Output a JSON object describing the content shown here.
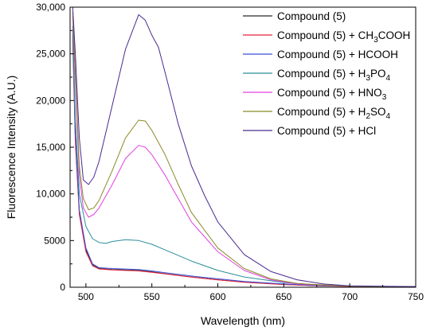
{
  "chart_data": {
    "type": "line",
    "xlabel": "Wavelength (nm)",
    "ylabel": "Fluorescence Intensity (A.U.)",
    "xlim": [
      488,
      750
    ],
    "ylim": [
      0,
      30000
    ],
    "xticks": [
      500,
      550,
      600,
      650,
      700,
      750
    ],
    "xtick_labels": [
      "500",
      "550",
      "600",
      "650",
      "700",
      "750"
    ],
    "yticks": [
      0,
      5000,
      10000,
      15000,
      20000,
      25000,
      30000
    ],
    "ytick_labels": [
      "0",
      "5000",
      "10,000",
      "15,000",
      "20,000",
      "25,000",
      "30,000"
    ],
    "grid": false,
    "legend_position": "top-right",
    "series": [
      {
        "legend": [
          {
            "t": "Compound (5)"
          }
        ],
        "color": "#2b2b2b",
        "points": [
          [
            490,
            27000
          ],
          [
            492,
            16000
          ],
          [
            495,
            8000
          ],
          [
            500,
            4000
          ],
          [
            505,
            2400
          ],
          [
            510,
            2000
          ],
          [
            520,
            1900
          ],
          [
            530,
            1850
          ],
          [
            540,
            1800
          ],
          [
            550,
            1650
          ],
          [
            560,
            1450
          ],
          [
            580,
            1100
          ],
          [
            600,
            800
          ],
          [
            620,
            550
          ],
          [
            650,
            300
          ],
          [
            680,
            150
          ],
          [
            710,
            80
          ],
          [
            750,
            50
          ]
        ]
      },
      {
        "legend": [
          {
            "t": "Compound (5) + CH"
          },
          {
            "t": "3",
            "sub": true
          },
          {
            "t": "COOH"
          }
        ],
        "color": "#e8213a",
        "points": [
          [
            490,
            26500
          ],
          [
            492,
            15500
          ],
          [
            495,
            7800
          ],
          [
            500,
            3800
          ],
          [
            505,
            2300
          ],
          [
            510,
            1950
          ],
          [
            520,
            1850
          ],
          [
            530,
            1800
          ],
          [
            540,
            1750
          ],
          [
            550,
            1600
          ],
          [
            560,
            1420
          ],
          [
            580,
            1080
          ],
          [
            600,
            780
          ],
          [
            620,
            540
          ],
          [
            650,
            290
          ],
          [
            680,
            140
          ],
          [
            710,
            70
          ],
          [
            750,
            40
          ]
        ]
      },
      {
        "legend": [
          {
            "t": "Compound (5) + HCOOH"
          }
        ],
        "color": "#3a4fd8",
        "points": [
          [
            490,
            27500
          ],
          [
            492,
            16500
          ],
          [
            495,
            8300
          ],
          [
            500,
            4200
          ],
          [
            505,
            2500
          ],
          [
            510,
            2100
          ],
          [
            520,
            2000
          ],
          [
            530,
            1950
          ],
          [
            540,
            1900
          ],
          [
            550,
            1750
          ],
          [
            560,
            1550
          ],
          [
            580,
            1200
          ],
          [
            600,
            900
          ],
          [
            620,
            620
          ],
          [
            650,
            350
          ],
          [
            680,
            170
          ],
          [
            710,
            90
          ],
          [
            750,
            50
          ]
        ]
      },
      {
        "legend": [
          {
            "t": "Compound (5) + H"
          },
          {
            "t": "3",
            "sub": true
          },
          {
            "t": "PO"
          },
          {
            "t": "4",
            "sub": true
          }
        ],
        "color": "#2a8f9a",
        "points": [
          [
            490,
            28000
          ],
          [
            492,
            18000
          ],
          [
            495,
            10000
          ],
          [
            500,
            6500
          ],
          [
            505,
            5200
          ],
          [
            510,
            4800
          ],
          [
            515,
            4700
          ],
          [
            520,
            4900
          ],
          [
            530,
            5100
          ],
          [
            540,
            5000
          ],
          [
            550,
            4600
          ],
          [
            560,
            4000
          ],
          [
            580,
            2800
          ],
          [
            600,
            1800
          ],
          [
            620,
            1100
          ],
          [
            650,
            500
          ],
          [
            680,
            200
          ],
          [
            710,
            90
          ],
          [
            750,
            40
          ]
        ]
      },
      {
        "legend": [
          {
            "t": "Compound (5) + HNO"
          },
          {
            "t": "3",
            "sub": true
          }
        ],
        "color": "#e040e0",
        "points": [
          [
            490,
            29000
          ],
          [
            492,
            22000
          ],
          [
            495,
            12000
          ],
          [
            498,
            8500
          ],
          [
            502,
            7500
          ],
          [
            506,
            7800
          ],
          [
            510,
            8500
          ],
          [
            520,
            11000
          ],
          [
            530,
            13800
          ],
          [
            540,
            15200
          ],
          [
            545,
            15000
          ],
          [
            550,
            14200
          ],
          [
            560,
            12000
          ],
          [
            570,
            9500
          ],
          [
            580,
            7000
          ],
          [
            600,
            3800
          ],
          [
            620,
            1800
          ],
          [
            640,
            800
          ],
          [
            660,
            350
          ],
          [
            700,
            100
          ],
          [
            750,
            40
          ]
        ]
      },
      {
        "legend": [
          {
            "t": "Compound (5) + H"
          },
          {
            "t": "2",
            "sub": true
          },
          {
            "t": "SO"
          },
          {
            "t": "4",
            "sub": true
          }
        ],
        "color": "#8a8a28",
        "points": [
          [
            490,
            29500
          ],
          [
            492,
            23000
          ],
          [
            495,
            13000
          ],
          [
            498,
            9500
          ],
          [
            502,
            8300
          ],
          [
            506,
            8500
          ],
          [
            510,
            9300
          ],
          [
            520,
            12500
          ],
          [
            530,
            16000
          ],
          [
            540,
            17900
          ],
          [
            545,
            17800
          ],
          [
            550,
            16800
          ],
          [
            560,
            14200
          ],
          [
            570,
            11000
          ],
          [
            580,
            8000
          ],
          [
            600,
            4200
          ],
          [
            620,
            2000
          ],
          [
            640,
            900
          ],
          [
            660,
            400
          ],
          [
            700,
            100
          ],
          [
            750,
            40
          ]
        ]
      },
      {
        "legend": [
          {
            "t": "Compound (5) + HCl"
          }
        ],
        "color": "#4a2a90",
        "points": [
          [
            490,
            30000
          ],
          [
            492,
            25000
          ],
          [
            495,
            16000
          ],
          [
            498,
            11500
          ],
          [
            502,
            11000
          ],
          [
            506,
            11800
          ],
          [
            510,
            13500
          ],
          [
            520,
            19500
          ],
          [
            530,
            25500
          ],
          [
            540,
            29200
          ],
          [
            545,
            28600
          ],
          [
            550,
            27000
          ],
          [
            555,
            25700
          ],
          [
            560,
            23000
          ],
          [
            570,
            17500
          ],
          [
            580,
            13000
          ],
          [
            590,
            9800
          ],
          [
            600,
            7000
          ],
          [
            620,
            3500
          ],
          [
            640,
            1700
          ],
          [
            660,
            800
          ],
          [
            680,
            350
          ],
          [
            700,
            150
          ],
          [
            750,
            60
          ]
        ]
      }
    ]
  }
}
